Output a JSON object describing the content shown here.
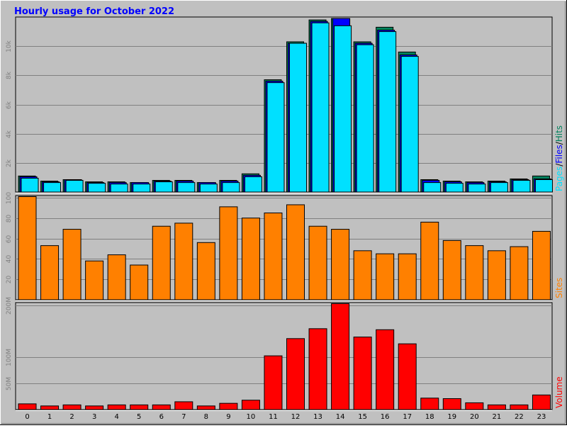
{
  "title": "Hourly usage for October 2022",
  "colors": {
    "background": "#C0C0C0",
    "title": "#0000FF",
    "hits": "#00805C",
    "files": "#0000FF",
    "pages": "#00E0FF",
    "sites": "#FF8000",
    "volume": "#FF0000",
    "grid": "#808080"
  },
  "right_labels": {
    "pages": "Pages",
    "sep1": "/",
    "files": "Files",
    "sep2": "/",
    "hits": "Hits",
    "sites": "Sites",
    "volume": "Volume"
  },
  "chart_data": [
    {
      "type": "bar",
      "title": "Hourly usage for October 2022",
      "categories": [
        "0",
        "1",
        "2",
        "3",
        "4",
        "5",
        "6",
        "7",
        "8",
        "9",
        "10",
        "11",
        "12",
        "13",
        "14",
        "15",
        "16",
        "17",
        "18",
        "19",
        "20",
        "21",
        "22",
        "23"
      ],
      "y_ticks": [
        "2k",
        "4k",
        "6k",
        "8k",
        "10k"
      ],
      "ylim": [
        0,
        12000
      ],
      "grid": true,
      "series": [
        {
          "name": "Hits",
          "color": "#00805C",
          "values": [
            1100,
            750,
            850,
            700,
            700,
            650,
            800,
            800,
            650,
            800,
            1250,
            7700,
            10300,
            11800,
            11900,
            10300,
            11300,
            9600,
            850,
            750,
            700,
            750,
            900,
            1100
          ]
        },
        {
          "name": "Files",
          "color": "#0000FF",
          "values": [
            1050,
            700,
            850,
            650,
            650,
            650,
            750,
            750,
            650,
            750,
            1150,
            7600,
            10200,
            11700,
            11900,
            10200,
            11100,
            9400,
            800,
            700,
            650,
            700,
            850,
            900
          ]
        },
        {
          "name": "Pages",
          "color": "#00E0FF",
          "values": [
            950,
            650,
            800,
            600,
            550,
            550,
            700,
            650,
            550,
            650,
            1050,
            7500,
            10200,
            11600,
            11400,
            10100,
            11000,
            9300,
            650,
            600,
            550,
            650,
            800,
            850
          ]
        }
      ]
    },
    {
      "type": "bar",
      "categories": [
        "0",
        "1",
        "2",
        "3",
        "4",
        "5",
        "6",
        "7",
        "8",
        "9",
        "10",
        "11",
        "12",
        "13",
        "14",
        "15",
        "16",
        "17",
        "18",
        "19",
        "20",
        "21",
        "22",
        "23"
      ],
      "y_ticks": [
        "20",
        "40",
        "60",
        "80",
        "100"
      ],
      "ylim": [
        0,
        102
      ],
      "grid": true,
      "series": [
        {
          "name": "Sites",
          "color": "#FF8000",
          "values": [
            101,
            53,
            69,
            38,
            44,
            34,
            72,
            75,
            56,
            91,
            80,
            85,
            93,
            72,
            69,
            48,
            45,
            45,
            76,
            58,
            53,
            48,
            52,
            67
          ]
        }
      ]
    },
    {
      "type": "bar",
      "categories": [
        "0",
        "1",
        "2",
        "3",
        "4",
        "5",
        "6",
        "7",
        "8",
        "9",
        "10",
        "11",
        "12",
        "13",
        "14",
        "15",
        "16",
        "17",
        "18",
        "19",
        "20",
        "21",
        "22",
        "23"
      ],
      "y_ticks": [
        "50M",
        "100M",
        "200M"
      ],
      "ylim": [
        0,
        205
      ],
      "y_unit": "M",
      "grid": true,
      "series": [
        {
          "name": "Volume",
          "color": "#FF0000",
          "values": [
            11,
            7,
            9,
            7,
            9,
            9,
            9,
            15,
            7,
            12,
            18,
            103,
            136,
            155,
            203,
            139,
            153,
            126,
            22,
            21,
            13,
            9,
            9,
            28
          ]
        }
      ]
    }
  ]
}
